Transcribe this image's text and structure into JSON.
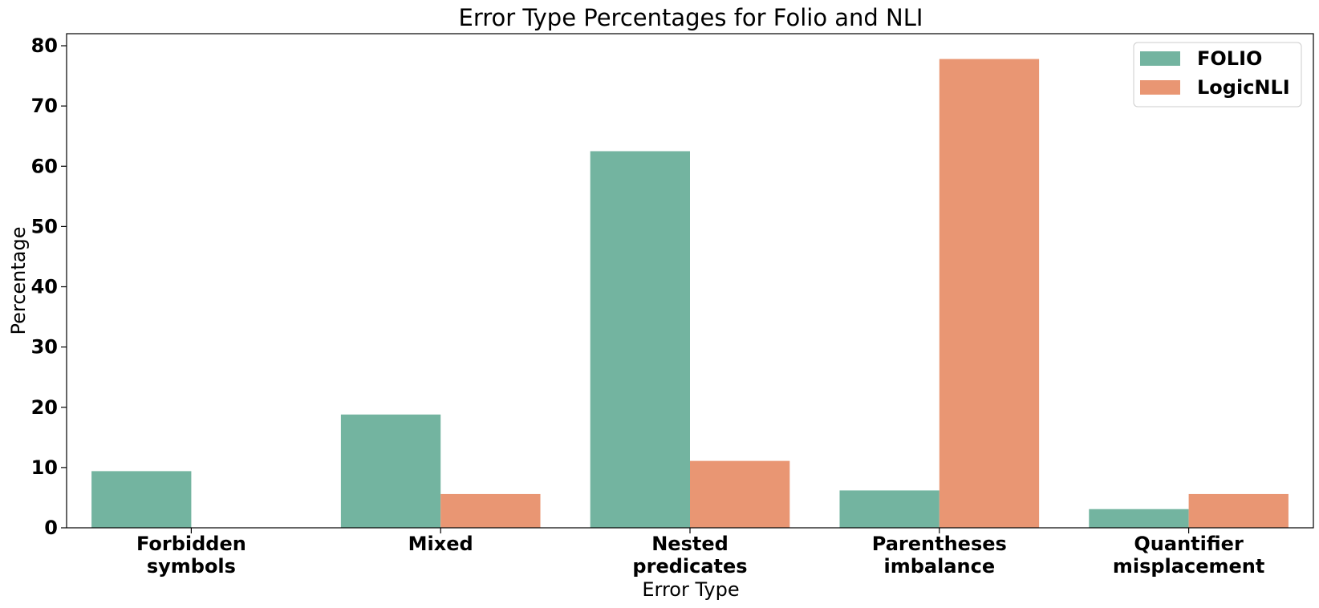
{
  "chart_data": {
    "type": "bar",
    "title": "Error Type Percentages for Folio and NLI",
    "xlabel": "Error Type",
    "ylabel": "Percentage",
    "categories": [
      [
        "Forbidden",
        "symbols"
      ],
      [
        "Mixed"
      ],
      [
        "Nested",
        "predicates"
      ],
      [
        "Parentheses",
        "imbalance"
      ],
      [
        "Quantifier",
        "misplacement"
      ]
    ],
    "series": [
      {
        "name": "FOLIO",
        "color": "#73b4a0",
        "values": [
          9.4,
          18.8,
          62.5,
          6.2,
          3.1
        ]
      },
      {
        "name": "LogicNLI",
        "color": "#e99673",
        "values": [
          0,
          5.6,
          11.1,
          77.8,
          5.6
        ]
      }
    ],
    "ylim": [
      0,
      82
    ],
    "yticks": [
      0,
      10,
      20,
      30,
      40,
      50,
      60,
      70,
      80
    ],
    "grid": false,
    "legend_position": "top-right"
  }
}
